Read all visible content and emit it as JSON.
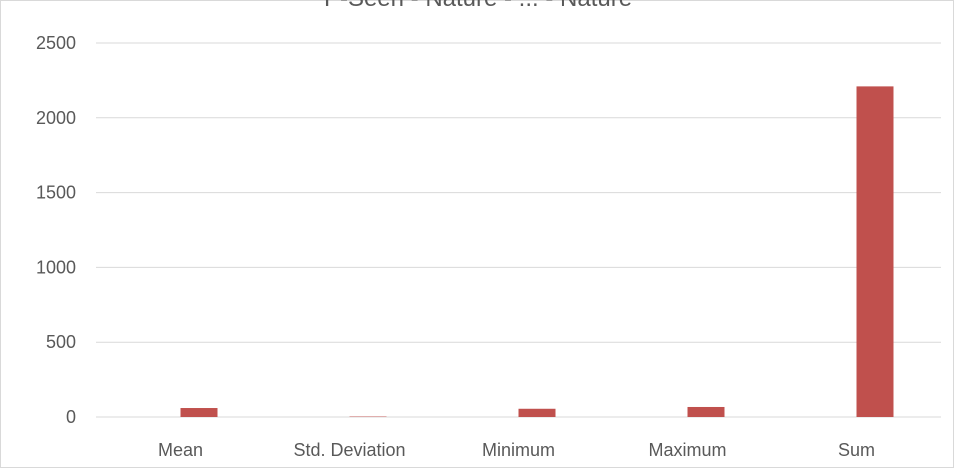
{
  "chart_data": {
    "type": "bar",
    "title": "P-Seen - Nature - ... - Nature",
    "categories": [
      "Mean",
      "Std. Deviation",
      "Minimum",
      "Maximum",
      "Sum"
    ],
    "series": [
      {
        "values": [
          0,
          0,
          0,
          0,
          0
        ],
        "color": "#4472c4"
      },
      {
        "values": [
          60,
          3,
          55,
          67,
          2210
        ],
        "color": "#c0504d"
      }
    ],
    "ylim": [
      0,
      2500
    ],
    "yticks": [
      0,
      500,
      1000,
      1500,
      2000,
      2500
    ],
    "grid": true,
    "legend": "none"
  }
}
